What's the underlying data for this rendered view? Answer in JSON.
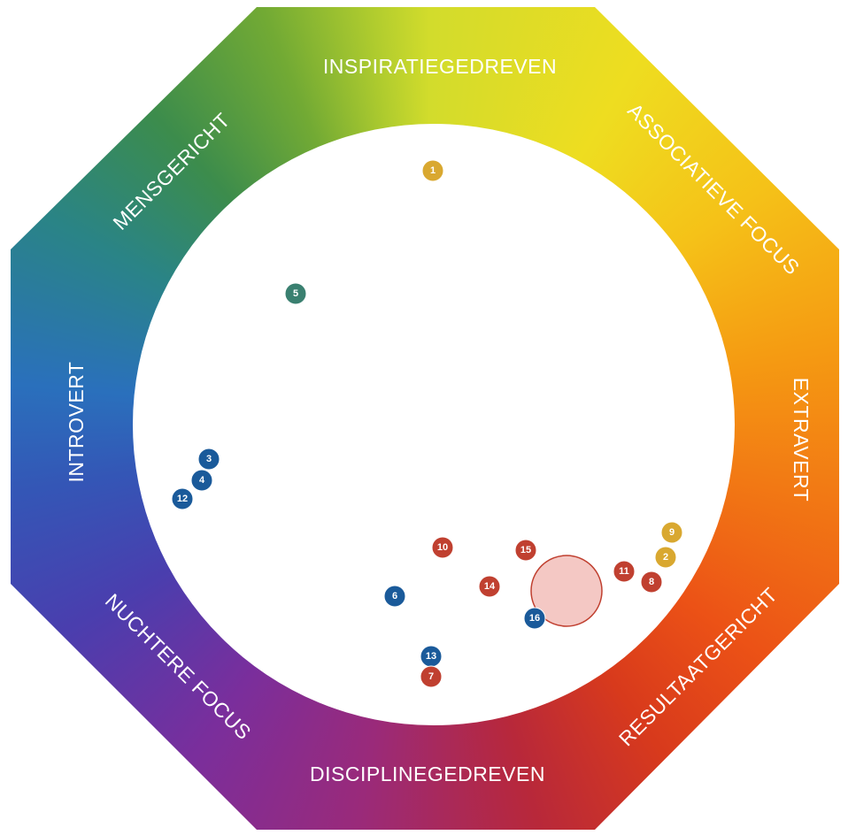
{
  "segments": [
    {
      "label": "INSPIRATIEGEDREVEN"
    },
    {
      "label": "ASSOCIATIEVE FOCUS"
    },
    {
      "label": "EXTRAVERT"
    },
    {
      "label": "RESULTAATGERICHT"
    },
    {
      "label": "DISCIPLINEGEDREVEN"
    },
    {
      "label": "NUCHTERE FOCUS"
    },
    {
      "label": "INTROVERT"
    },
    {
      "label": "MENSGERICHT"
    }
  ],
  "markers": [
    {
      "label": "1",
      "color": "#d9a830"
    },
    {
      "label": "5",
      "color": "#3a8070"
    },
    {
      "label": "3",
      "color": "#1a5a9a"
    },
    {
      "label": "4",
      "color": "#1a5a9a"
    },
    {
      "label": "12",
      "color": "#1a5a9a"
    },
    {
      "label": "10",
      "color": "#c04030"
    },
    {
      "label": "15",
      "color": "#c04030"
    },
    {
      "label": "9",
      "color": "#d9a830"
    },
    {
      "label": "2",
      "color": "#d9a830"
    },
    {
      "label": "11",
      "color": "#c04030"
    },
    {
      "label": "8",
      "color": "#c04030"
    },
    {
      "label": "14",
      "color": "#c04030"
    },
    {
      "label": "6",
      "color": "#1a5a9a"
    },
    {
      "label": "16",
      "color": "#1a5a9a"
    },
    {
      "label": "13",
      "color": "#1a5a9a"
    },
    {
      "label": "7",
      "color": "#c04030"
    }
  ]
}
